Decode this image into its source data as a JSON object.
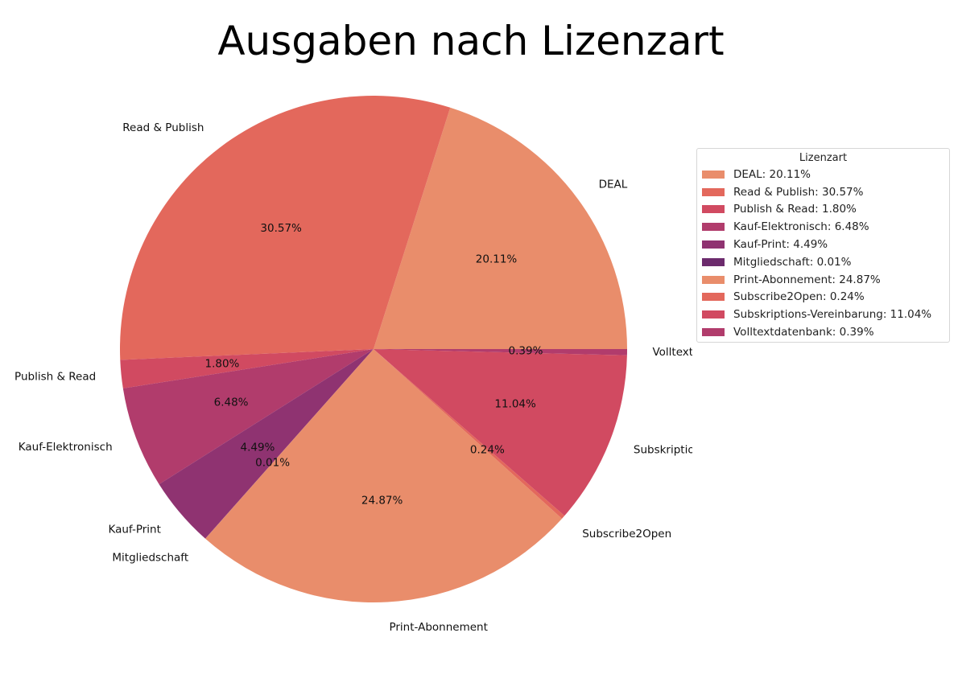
{
  "chart_data": {
    "type": "pie",
    "title": "Ausgaben nach Lizenzart",
    "legend_title": "Lizenzart",
    "legend_position": "right",
    "start_angle_deg": 0,
    "direction": "counterclockwise",
    "slices": [
      {
        "label": "DEAL",
        "pct_label": "20.11%",
        "legend": "DEAL: 20.11%",
        "value": 20.11,
        "color": "#e98d6b"
      },
      {
        "label": "Read & Publish",
        "pct_label": "30.57%",
        "legend": "Read & Publish: 30.57%",
        "value": 30.57,
        "color": "#e3685c"
      },
      {
        "label": "Publish & Read",
        "pct_label": "1.80%",
        "legend": "Publish & Read: 1.80%",
        "value": 1.8,
        "color": "#d14a61"
      },
      {
        "label": "Kauf-Elektronisch",
        "pct_label": "6.48%",
        "legend": "Kauf-Elektronisch: 6.48%",
        "value": 6.48,
        "color": "#b13c6c"
      },
      {
        "label": "Kauf-Print",
        "pct_label": "4.49%",
        "legend": "Kauf-Print: 4.49%",
        "value": 4.49,
        "color": "#8f3371"
      },
      {
        "label": "Mitgliedschaft",
        "pct_label": "0.01%",
        "legend": "Mitgliedschaft: 0.01%",
        "value": 0.01,
        "color": "#6c2b6d"
      },
      {
        "label": "Print-Abonnement",
        "pct_label": "24.87%",
        "legend": "Print-Abonnement: 24.87%",
        "value": 24.87,
        "color": "#e98d6b"
      },
      {
        "label": "Subscribe2Open",
        "pct_label": "0.24%",
        "legend": "Subscribe2Open: 0.24%",
        "value": 0.24,
        "color": "#e3685c"
      },
      {
        "label": "Subskriptions-Vereinbarung",
        "pct_label": "11.04%",
        "legend": "Subskriptions-Vereinbarung: 11.04%",
        "value": 11.04,
        "color": "#d14a61"
      },
      {
        "label": "Volltextdatenbank",
        "pct_label": "0.39%",
        "legend": "Volltextdatenbank: 0.39%",
        "value": 0.39,
        "color": "#b13c6c"
      }
    ]
  }
}
